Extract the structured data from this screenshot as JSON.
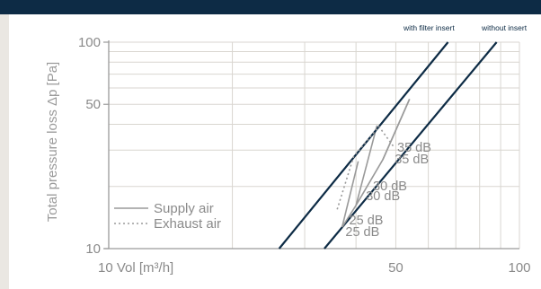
{
  "chart_data": {
    "type": "line",
    "title": "",
    "xlabel": "Vol [m³/h]",
    "ylabel": "Total pressure loss Δp [Pa]",
    "x_scale": "log",
    "y_scale": "log",
    "xlim": [
      10,
      100
    ],
    "ylim": [
      10,
      100
    ],
    "x_ticks": [
      {
        "value": 10,
        "label": "10 Vol [m³/h]"
      },
      {
        "value": 50,
        "label": "50"
      },
      {
        "value": 100,
        "label": "100"
      }
    ],
    "y_ticks": [
      {
        "value": 10,
        "label": "10"
      },
      {
        "value": 50,
        "label": "50"
      },
      {
        "value": 100,
        "label": "100"
      }
    ],
    "grid": true,
    "series": [
      {
        "name": "with filter insert",
        "color": "#0d2b45",
        "x": [
          26,
          67
        ],
        "y": [
          10,
          100
        ]
      },
      {
        "name": "without insert",
        "color": "#0d2b45",
        "x": [
          33.5,
          88
        ],
        "y": [
          10,
          100
        ]
      },
      {
        "name": "Supply air",
        "color": "#9a9a9a",
        "dash": "solid",
        "x": [
          37,
          40,
          46.5,
          54
        ],
        "y": [
          12.7,
          16.2,
          27,
          53
        ]
      },
      {
        "name": "Exhaust air",
        "color": "#9a9a9a",
        "dash": "dotted",
        "x": [
          36,
          39.5,
          45.5,
          49.5
        ],
        "y": [
          15.5,
          28,
          39,
          31
        ]
      }
    ],
    "connectors": [
      {
        "x": [
          37,
          40.5
        ],
        "y": [
          12.7,
          26.5
        ],
        "color": "#9a9a9a"
      },
      {
        "x": [
          40,
          45
        ],
        "y": [
          16.2,
          39.5
        ],
        "color": "#9a9a9a"
      },
      {
        "x": [
          46.5,
          54
        ],
        "y": [
          27,
          53
        ],
        "color": "#9a9a9a"
      }
    ],
    "annotations": [
      {
        "text": "35 dB",
        "x": 50.4,
        "y": 29.5
      },
      {
        "text": "35 dB",
        "x": 49.7,
        "y": 25.9
      },
      {
        "text": "30 dB",
        "x": 44.0,
        "y": 19.2
      },
      {
        "text": "30 dB",
        "x": 42.3,
        "y": 17.2
      },
      {
        "text": "25 dB",
        "x": 38.5,
        "y": 13.1
      },
      {
        "text": "25 dB",
        "x": 37.7,
        "y": 11.5
      }
    ],
    "legend": {
      "placement": "bottom-left",
      "items": [
        {
          "label": "Supply air",
          "style": "solid"
        },
        {
          "label": "Exhaust air",
          "style": "dotted"
        }
      ]
    },
    "top_legend": [
      "with filter insert",
      "without insert"
    ]
  }
}
